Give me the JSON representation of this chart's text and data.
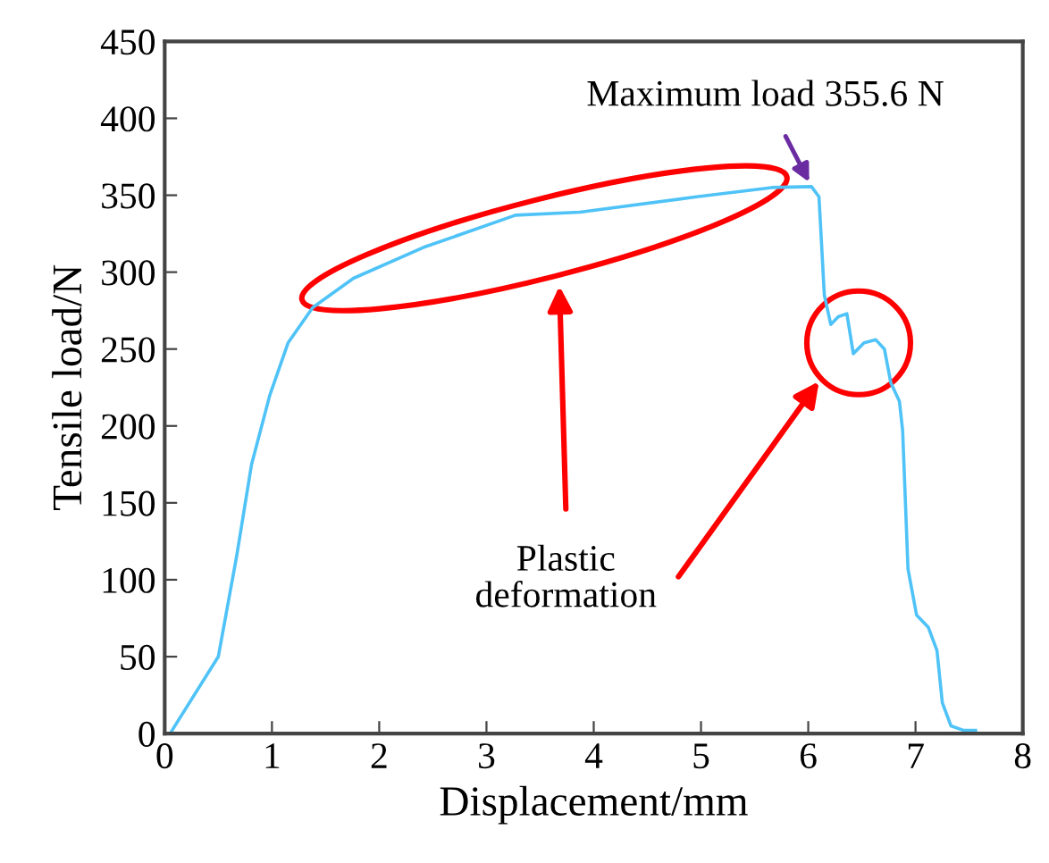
{
  "chart_data": {
    "type": "line",
    "xlabel": "Displacement/mm",
    "ylabel": "Tensile load/N",
    "xlim": [
      0,
      8
    ],
    "xticks": [
      0,
      1,
      2,
      3,
      4,
      5,
      6,
      7,
      8
    ],
    "ylim": [
      0,
      450
    ],
    "yticks": [
      0,
      50,
      100,
      150,
      200,
      250,
      300,
      350,
      400,
      450
    ],
    "grid": false,
    "legend": false,
    "series": [
      {
        "color": "#4fc3f7",
        "x": [
          0.05,
          0.5,
          0.67,
          0.81,
          0.98,
          1.15,
          1.38,
          1.76,
          2.41,
          3.27,
          3.87,
          4.96,
          5.66,
          6.03,
          6.1,
          6.15,
          6.21,
          6.28,
          6.36,
          6.42,
          6.52,
          6.63,
          6.71,
          6.77,
          6.85,
          6.88,
          6.93,
          7.01,
          7.12,
          7.2,
          7.25,
          7.33,
          7.45,
          7.56
        ],
        "values": [
          0,
          50,
          115,
          175,
          220,
          254,
          277,
          296,
          316,
          337,
          339,
          349,
          355,
          355.6,
          349,
          285,
          266,
          271,
          273,
          247,
          254,
          256,
          250,
          228,
          216,
          197,
          107,
          77,
          69,
          54,
          20,
          5,
          2,
          2
        ]
      }
    ],
    "annotations": [
      {
        "text": "Maximum load 355.6 N",
        "x": 6.03,
        "y": 355.6
      },
      "Plastic\ndeformation"
    ]
  }
}
